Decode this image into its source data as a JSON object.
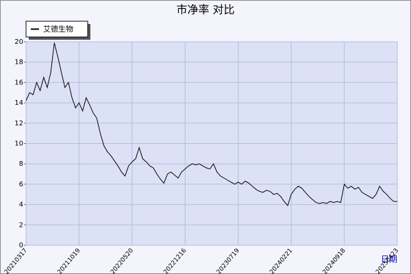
{
  "chart_data": {
    "type": "line",
    "title": "市净率  对比",
    "x_label": "日期",
    "categories": [
      "20210317",
      null,
      null,
      null,
      null,
      null,
      null,
      null,
      null,
      null,
      null,
      null,
      null,
      null,
      null,
      "20211019",
      null,
      null,
      null,
      null,
      null,
      null,
      null,
      null,
      null,
      null,
      null,
      null,
      null,
      null,
      "20220520",
      null,
      null,
      null,
      null,
      null,
      null,
      null,
      null,
      null,
      null,
      null,
      null,
      null,
      null,
      "20221216",
      null,
      null,
      null,
      null,
      null,
      null,
      null,
      null,
      null,
      null,
      null,
      null,
      null,
      null,
      "20230719",
      null,
      null,
      null,
      null,
      null,
      null,
      null,
      null,
      null,
      null,
      null,
      null,
      null,
      null,
      "20240221",
      null,
      null,
      null,
      null,
      null,
      null,
      null,
      null,
      null,
      null,
      null,
      null,
      null,
      null,
      "20240918",
      null,
      null,
      null,
      null,
      null,
      null,
      null,
      null,
      null,
      null,
      null,
      null,
      null,
      null,
      "20250423"
    ],
    "series": [
      {
        "name": "艾德生物",
        "color": "#000000",
        "values": [
          14.2,
          15.0,
          14.8,
          16.0,
          15.2,
          16.5,
          15.5,
          17.0,
          19.9,
          18.5,
          17.0,
          15.5,
          16.0,
          14.5,
          13.5,
          14.0,
          13.2,
          14.5,
          13.8,
          13.0,
          12.5,
          11.0,
          9.8,
          9.2,
          8.8,
          8.3,
          7.8,
          7.2,
          6.8,
          7.8,
          8.2,
          8.5,
          9.6,
          8.5,
          8.2,
          7.8,
          7.6,
          7.0,
          6.5,
          6.1,
          7.0,
          7.2,
          6.9,
          6.6,
          7.2,
          7.5,
          7.8,
          8.0,
          7.9,
          8.0,
          7.8,
          7.6,
          7.5,
          8.0,
          7.2,
          6.8,
          6.6,
          6.4,
          6.2,
          6.0,
          6.2,
          6.0,
          6.3,
          6.1,
          5.8,
          5.5,
          5.3,
          5.2,
          5.4,
          5.3,
          5.0,
          5.1,
          4.8,
          4.3,
          3.9,
          5.0,
          5.5,
          5.8,
          5.6,
          5.2,
          4.8,
          4.5,
          4.2,
          4.1,
          4.2,
          4.1,
          4.3,
          4.2,
          4.3,
          4.2,
          6.0,
          5.6,
          5.8,
          5.5,
          5.7,
          5.2,
          5.0,
          4.8,
          4.6,
          5.0,
          5.8,
          5.3,
          5.0,
          4.6,
          4.3,
          4.3
        ]
      }
    ],
    "ylim": [
      0,
      20
    ],
    "yticks": [
      0,
      2,
      4,
      6,
      8,
      10,
      12,
      14,
      16,
      18,
      20
    ],
    "grid": true
  }
}
